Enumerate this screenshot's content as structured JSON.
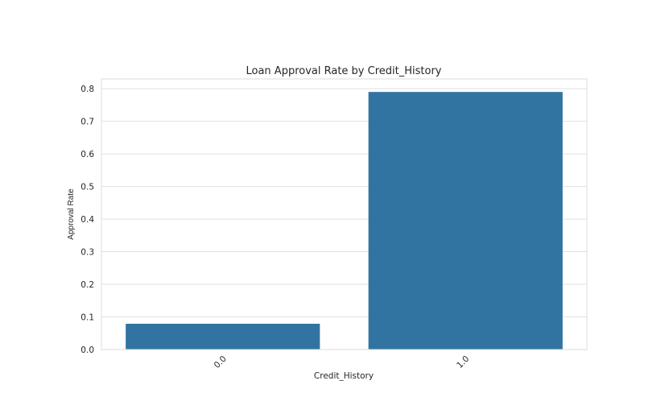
{
  "chart_data": {
    "type": "bar",
    "title": "Loan Approval Rate by Credit_History",
    "xlabel": "Credit_History",
    "ylabel": "Approval Rate",
    "categories": [
      "0.0",
      "1.0"
    ],
    "values": [
      0.079,
      0.79
    ],
    "ylim": [
      0,
      0.83
    ],
    "yticks": [
      "0.0",
      "0.1",
      "0.2",
      "0.3",
      "0.4",
      "0.5",
      "0.6",
      "0.7",
      "0.8"
    ],
    "grid": true,
    "bar_color": "#3274a1",
    "grid_color": "#e0e0e0"
  }
}
